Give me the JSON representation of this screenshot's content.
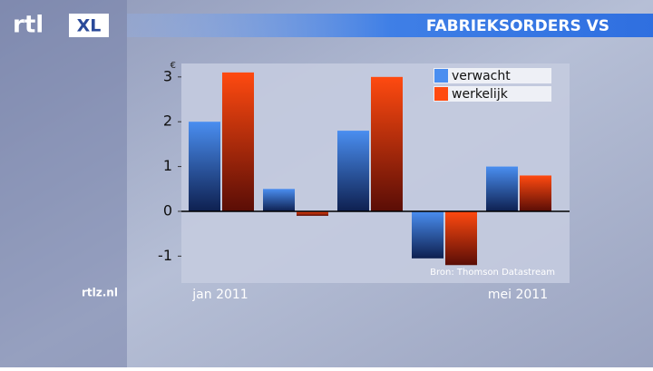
{
  "brand": {
    "logo": "rtl",
    "logo_badge": "XL",
    "site": "rtlz.nl"
  },
  "chart_data": {
    "type": "bar",
    "title": "FABRIEKSORDERS VS",
    "unit": "€",
    "source": "Bron: Thomson Datastream",
    "categories": [
      "jan 2011",
      null,
      null,
      null,
      "mei 2011"
    ],
    "series": [
      {
        "name": "verwacht",
        "color": "#4a8ef0",
        "values": [
          2.0,
          0.5,
          1.8,
          -1.05,
          1.0
        ]
      },
      {
        "name": "werkelijk",
        "color": "#ff4a10",
        "values": [
          3.1,
          -0.1,
          3.0,
          -1.2,
          0.8
        ]
      }
    ],
    "ylim": [
      -1.6,
      3.3
    ],
    "yticks": [
      3,
      2,
      1,
      0,
      -1
    ],
    "legend": "top-right",
    "zero_line": true
  }
}
